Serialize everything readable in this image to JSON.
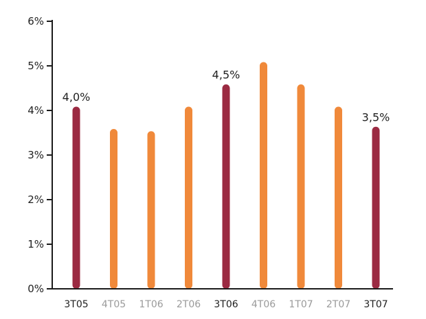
{
  "chart_data": {
    "type": "bar",
    "title": "",
    "xlabel": "",
    "ylabel": "",
    "categories": [
      "3T05",
      "4T05",
      "1T06",
      "2T06",
      "3T06",
      "4T06",
      "1T07",
      "2T07",
      "3T07"
    ],
    "values": [
      4.0,
      3.5,
      3.45,
      4.0,
      4.5,
      5.0,
      4.5,
      4.0,
      3.55
    ],
    "highlighted": [
      true,
      false,
      false,
      false,
      true,
      false,
      false,
      false,
      true
    ],
    "data_labels": [
      "4,0%",
      "",
      "",
      "",
      "4,5%",
      "",
      "",
      "",
      "3,5%"
    ],
    "ylim": [
      0,
      6
    ],
    "yticks": [
      0,
      1,
      2,
      3,
      4,
      5,
      6
    ],
    "ytick_labels": [
      "0%",
      "1%",
      "2%",
      "3%",
      "4%",
      "5%",
      "6%"
    ],
    "grid": false,
    "colors": {
      "highlight": "#9b2a42",
      "normal": "#f0893a",
      "axis": "#1a1a1a",
      "highlight_label": "#1f1f1f",
      "normal_label": "#9a9a9a"
    }
  }
}
